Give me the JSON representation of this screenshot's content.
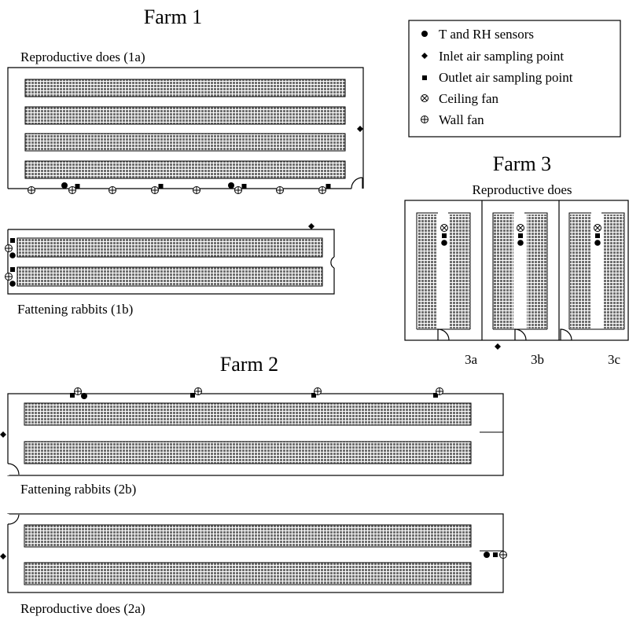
{
  "farm1": {
    "title": "Farm 1",
    "building_1a_label": "Reproductive does (1a)",
    "building_1b_label": "Fattening rabbits (1b)"
  },
  "farm2": {
    "title": "Farm 2",
    "building_2b_label": "Fattening rabbits (2b)",
    "building_2a_label": "Reproductive does (2a)"
  },
  "farm3": {
    "title": "Farm 3",
    "subtitle": "Reproductive does",
    "room_labels": [
      "3a",
      "3b",
      "3c"
    ]
  },
  "legend": {
    "items": [
      {
        "icon": "filled-circle",
        "label": "T and RH sensors"
      },
      {
        "icon": "diamond",
        "label": "Inlet air sampling point"
      },
      {
        "icon": "square",
        "label": "Outlet air sampling point"
      },
      {
        "icon": "circle-x",
        "label": "Ceiling fan"
      },
      {
        "icon": "circle-plus",
        "label": "Wall fan"
      }
    ]
  },
  "colors": {
    "line": "#000000",
    "cage_fill": "#8a8a8a",
    "background": "#ffffff"
  }
}
